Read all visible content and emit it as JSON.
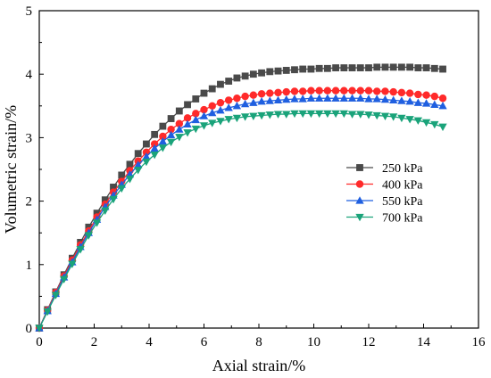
{
  "chart_data": {
    "type": "line",
    "xlabel": "Axial strain/%",
    "ylabel": "Volumetric strain/%",
    "xlim": [
      0,
      16
    ],
    "ylim": [
      0,
      5
    ],
    "xticks": [
      0,
      2,
      4,
      6,
      8,
      10,
      12,
      14,
      16
    ],
    "yticks": [
      0,
      1,
      2,
      3,
      4,
      5
    ],
    "grid": false,
    "legend_position": "middle-right",
    "series": [
      {
        "name": "250 kPa",
        "color": "#4a4a4a",
        "marker": "square",
        "x": [
          0,
          0.3,
          0.6,
          0.9,
          1.2,
          1.5,
          1.8,
          2.1,
          2.4,
          2.7,
          3.0,
          3.3,
          3.6,
          3.9,
          4.2,
          4.5,
          4.8,
          5.1,
          5.4,
          5.7,
          6.0,
          6.3,
          6.6,
          6.9,
          7.2,
          7.5,
          7.8,
          8.1,
          8.4,
          8.7,
          9.0,
          9.3,
          9.6,
          9.9,
          10.2,
          10.5,
          10.8,
          11.1,
          11.4,
          11.7,
          12.0,
          12.3,
          12.6,
          12.9,
          13.2,
          13.5,
          13.8,
          14.1,
          14.4,
          14.7
        ],
        "y": [
          0,
          0.29,
          0.57,
          0.84,
          1.1,
          1.35,
          1.59,
          1.81,
          2.02,
          2.22,
          2.41,
          2.58,
          2.75,
          2.9,
          3.05,
          3.18,
          3.3,
          3.42,
          3.52,
          3.61,
          3.7,
          3.77,
          3.84,
          3.89,
          3.94,
          3.97,
          4.0,
          4.02,
          4.04,
          4.05,
          4.06,
          4.07,
          4.08,
          4.08,
          4.09,
          4.09,
          4.1,
          4.1,
          4.1,
          4.1,
          4.1,
          4.11,
          4.11,
          4.11,
          4.11,
          4.11,
          4.1,
          4.1,
          4.09,
          4.08
        ]
      },
      {
        "name": "400 kPa",
        "color": "#ff2a2a",
        "marker": "circle",
        "x": [
          0,
          0.3,
          0.6,
          0.9,
          1.2,
          1.5,
          1.8,
          2.1,
          2.4,
          2.7,
          3.0,
          3.3,
          3.6,
          3.9,
          4.2,
          4.5,
          4.8,
          5.1,
          5.4,
          5.7,
          6.0,
          6.3,
          6.6,
          6.9,
          7.2,
          7.5,
          7.8,
          8.1,
          8.4,
          8.7,
          9.0,
          9.3,
          9.6,
          9.9,
          10.2,
          10.5,
          10.8,
          11.1,
          11.4,
          11.7,
          12.0,
          12.3,
          12.6,
          12.9,
          13.2,
          13.5,
          13.8,
          14.1,
          14.4,
          14.7
        ],
        "y": [
          0,
          0.28,
          0.56,
          0.82,
          1.07,
          1.31,
          1.53,
          1.75,
          1.95,
          2.14,
          2.31,
          2.48,
          2.63,
          2.77,
          2.9,
          3.02,
          3.13,
          3.22,
          3.31,
          3.38,
          3.44,
          3.5,
          3.55,
          3.59,
          3.62,
          3.65,
          3.67,
          3.69,
          3.7,
          3.71,
          3.72,
          3.73,
          3.73,
          3.74,
          3.74,
          3.74,
          3.74,
          3.74,
          3.74,
          3.74,
          3.74,
          3.73,
          3.73,
          3.72,
          3.71,
          3.7,
          3.68,
          3.67,
          3.65,
          3.62
        ]
      },
      {
        "name": "550 kPa",
        "color": "#1f5fe0",
        "marker": "triangle-up",
        "x": [
          0,
          0.3,
          0.6,
          0.9,
          1.2,
          1.5,
          1.8,
          2.1,
          2.4,
          2.7,
          3.0,
          3.3,
          3.6,
          3.9,
          4.2,
          4.5,
          4.8,
          5.1,
          5.4,
          5.7,
          6.0,
          6.3,
          6.6,
          6.9,
          7.2,
          7.5,
          7.8,
          8.1,
          8.4,
          8.7,
          9.0,
          9.3,
          9.6,
          9.9,
          10.2,
          10.5,
          10.8,
          11.1,
          11.4,
          11.7,
          12.0,
          12.3,
          12.6,
          12.9,
          13.2,
          13.5,
          13.8,
          14.1,
          14.4,
          14.7
        ],
        "y": [
          0,
          0.27,
          0.54,
          0.8,
          1.04,
          1.28,
          1.5,
          1.71,
          1.91,
          2.09,
          2.26,
          2.42,
          2.57,
          2.7,
          2.83,
          2.94,
          3.04,
          3.13,
          3.21,
          3.28,
          3.34,
          3.39,
          3.43,
          3.47,
          3.5,
          3.53,
          3.55,
          3.57,
          3.58,
          3.59,
          3.6,
          3.61,
          3.61,
          3.62,
          3.62,
          3.62,
          3.62,
          3.62,
          3.62,
          3.62,
          3.61,
          3.61,
          3.6,
          3.59,
          3.58,
          3.57,
          3.55,
          3.54,
          3.52,
          3.5
        ]
      },
      {
        "name": "700 kPa",
        "color": "#1aa37a",
        "marker": "triangle-down",
        "x": [
          0,
          0.3,
          0.6,
          0.9,
          1.2,
          1.5,
          1.8,
          2.1,
          2.4,
          2.7,
          3.0,
          3.3,
          3.6,
          3.9,
          4.2,
          4.5,
          4.8,
          5.1,
          5.4,
          5.7,
          6.0,
          6.3,
          6.6,
          6.9,
          7.2,
          7.5,
          7.8,
          8.1,
          8.4,
          8.7,
          9.0,
          9.3,
          9.6,
          9.9,
          10.2,
          10.5,
          10.8,
          11.1,
          11.4,
          11.7,
          12.0,
          12.3,
          12.6,
          12.9,
          13.2,
          13.5,
          13.8,
          14.1,
          14.4,
          14.7
        ],
        "y": [
          0,
          0.26,
          0.52,
          0.77,
          1.01,
          1.24,
          1.46,
          1.66,
          1.85,
          2.03,
          2.2,
          2.35,
          2.49,
          2.62,
          2.73,
          2.84,
          2.93,
          3.01,
          3.08,
          3.14,
          3.19,
          3.23,
          3.26,
          3.29,
          3.31,
          3.33,
          3.34,
          3.35,
          3.36,
          3.37,
          3.37,
          3.38,
          3.38,
          3.38,
          3.38,
          3.38,
          3.38,
          3.38,
          3.37,
          3.37,
          3.36,
          3.35,
          3.34,
          3.33,
          3.31,
          3.29,
          3.27,
          3.24,
          3.21,
          3.17
        ]
      }
    ]
  }
}
